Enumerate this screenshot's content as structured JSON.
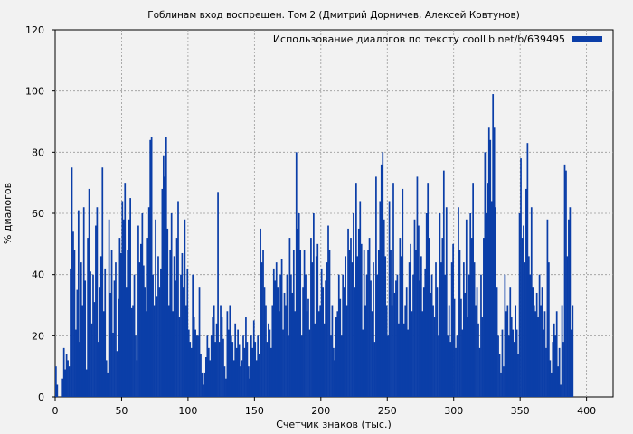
{
  "chart_data": {
    "type": "bar",
    "title": "Гоблинам вход воспрещен. Том 2 (Дмитрий Дорничев, Алексей Ковтунов)",
    "xlabel": "Счетчик знаков (тыс.)",
    "ylabel": "% диалогов",
    "xlim": [
      0,
      420
    ],
    "ylim": [
      0,
      120
    ],
    "xticks": [
      0,
      50,
      100,
      150,
      200,
      250,
      300,
      350,
      400
    ],
    "yticks": [
      0,
      20,
      40,
      60,
      80,
      100,
      120
    ],
    "grid": true,
    "legend_position": "top-right",
    "series": [
      {
        "name": "Использование диалогов по тексту coollib.net/b/639495",
        "color": "#0b3ea8",
        "x_start": 0,
        "x_step": 1,
        "values": [
          10,
          4,
          0,
          0,
          0,
          6,
          16,
          9,
          14,
          12,
          10,
          42,
          75,
          54,
          48,
          22,
          35,
          61,
          18,
          44,
          30,
          62,
          38,
          9,
          52,
          68,
          41,
          24,
          40,
          31,
          56,
          62,
          18,
          36,
          46,
          75,
          28,
          42,
          12,
          8,
          58,
          34,
          48,
          21,
          38,
          44,
          15,
          32,
          52,
          47,
          64,
          58,
          70,
          36,
          48,
          58,
          65,
          29,
          30,
          40,
          20,
          12,
          56,
          44,
          50,
          60,
          43,
          36,
          28,
          52,
          62,
          84,
          85,
          40,
          30,
          58,
          33,
          46,
          36,
          42,
          68,
          79,
          72,
          85,
          55,
          30,
          48,
          60,
          28,
          46,
          38,
          52,
          64,
          26,
          40,
          47,
          36,
          58,
          30,
          42,
          22,
          18,
          16,
          40,
          26,
          22,
          20,
          20,
          36,
          14,
          8,
          4,
          8,
          13,
          20,
          16,
          12,
          20,
          26,
          30,
          18,
          24,
          67,
          18,
          30,
          26,
          19,
          10,
          6,
          28,
          22,
          30,
          20,
          18,
          12,
          24,
          16,
          22,
          17,
          10,
          12,
          20,
          16,
          26,
          18,
          10,
          6,
          20,
          16,
          25,
          18,
          12,
          20,
          14,
          55,
          44,
          48,
          36,
          30,
          18,
          24,
          22,
          16,
          30,
          42,
          38,
          44,
          36,
          28,
          40,
          45,
          22,
          34,
          30,
          40,
          20,
          52,
          40,
          34,
          48,
          28,
          80,
          55,
          60,
          48,
          20,
          36,
          48,
          40,
          28,
          32,
          22,
          52,
          44,
          60,
          24,
          46,
          50,
          28,
          30,
          42,
          36,
          24,
          38,
          44,
          56,
          48,
          20,
          30,
          16,
          12,
          26,
          28,
          40,
          32,
          20,
          40,
          36,
          46,
          30,
          55,
          48,
          52,
          44,
          60,
          36,
          70,
          46,
          55,
          64,
          50,
          22,
          48,
          30,
          40,
          48,
          52,
          38,
          28,
          44,
          18,
          72,
          40,
          48,
          64,
          76,
          80,
          58,
          46,
          30,
          20,
          64,
          48,
          30,
          70,
          34,
          38,
          40,
          24,
          52,
          46,
          68,
          24,
          30,
          36,
          22,
          44,
          50,
          28,
          40,
          58,
          48,
          72,
          56,
          38,
          46,
          28,
          36,
          42,
          60,
          70,
          52,
          34,
          40,
          30,
          26,
          44,
          36,
          20,
          60,
          44,
          52,
          74,
          40,
          62,
          20,
          30,
          18,
          44,
          50,
          32,
          16,
          20,
          62,
          48,
          32,
          22,
          44,
          34,
          58,
          26,
          40,
          60,
          52,
          70,
          44,
          30,
          36,
          24,
          16,
          40,
          26,
          52,
          80,
          60,
          70,
          88,
          84,
          64,
          99,
          88,
          62,
          36,
          20,
          14,
          8,
          22,
          10,
          40,
          28,
          30,
          20,
          36,
          26,
          22,
          18,
          30,
          22,
          14,
          60,
          78,
          52,
          56,
          44,
          68,
          83,
          46,
          40,
          62,
          36,
          30,
          28,
          34,
          26,
          40,
          30,
          36,
          22,
          28,
          16,
          58,
          44,
          12,
          8,
          18,
          24,
          20,
          28,
          10,
          16,
          4,
          30,
          18,
          76,
          74,
          46,
          58,
          62,
          22,
          30
        ]
      }
    ]
  }
}
